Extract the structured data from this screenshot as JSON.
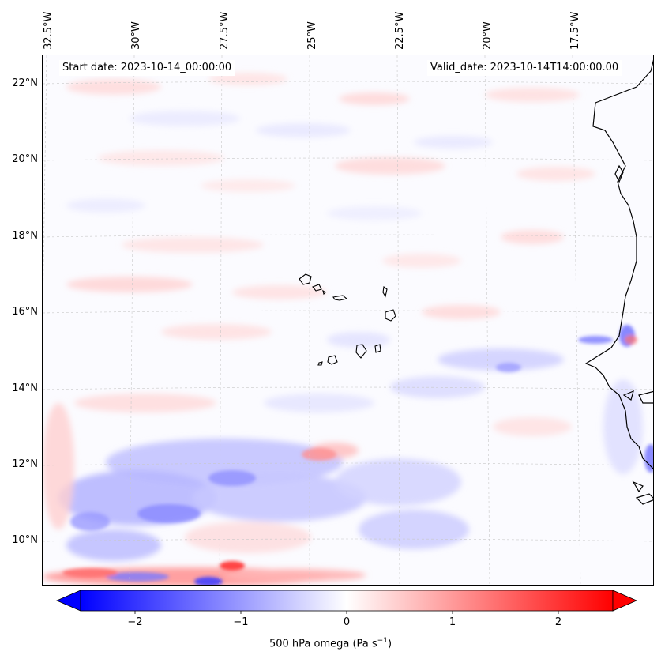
{
  "map": {
    "start_date": "Start date: 2023-10-14_00:00:00",
    "valid_date": "Valid_date: 2023-10-14T14:00:00.00",
    "longitude_labels": [
      "32.5°W",
      "30°W",
      "27.5°W",
      "25°W",
      "22.5°W",
      "20°W",
      "17.5°W"
    ],
    "latitude_labels": [
      "22°N",
      "20°N",
      "18°N",
      "16°N",
      "14°N",
      "12°N",
      "10°N"
    ],
    "variable": "500 hPa omega",
    "units_text": "(Pa s",
    "units_exponent": "−1",
    "units_close": ")"
  },
  "colorbar": {
    "ticks": [
      "−2",
      "−1",
      "0",
      "1",
      "2"
    ],
    "min": -2.6,
    "max": 2.6,
    "low_color": "#0000ff",
    "mid_color": "#ffffff",
    "high_color": "#ff0000"
  },
  "colors": {
    "coastline": "#000000",
    "gridline": "#c8c8c8"
  }
}
